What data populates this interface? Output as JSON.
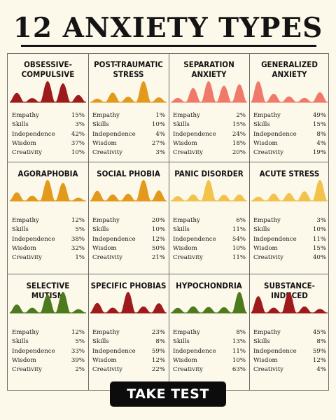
{
  "title": "12 ANXIETY TYPES",
  "cta_label": "TAKE TEST",
  "stat_labels": [
    "Empathy",
    "Skills",
    "Independence",
    "Wisdom",
    "Creativity"
  ],
  "colors": {
    "deep_red": "#9e1b1b",
    "light_red": "#f07a6a",
    "orange": "#e39a1c",
    "gold": "#f1c34c",
    "green": "#4d7a1c",
    "background": "#fcf8ea"
  },
  "chart_data": {
    "type": "table",
    "metrics": [
      "Empathy",
      "Skills",
      "Independence",
      "Wisdom",
      "Creativity"
    ],
    "items": [
      {
        "name": "OBSESSIVE-COMPULSIVE",
        "values": [
          "15%",
          "3%",
          "42%",
          "37%",
          "10%"
        ],
        "color": "#9e1b1b"
      },
      {
        "name": "POST-TRAUMATIC STRESS",
        "values": [
          "1%",
          "10%",
          "4%",
          "27%",
          "3%"
        ],
        "color": "#e39a1c"
      },
      {
        "name": "SEPARATION ANXIETY",
        "values": [
          "2%",
          "15%",
          "24%",
          "18%",
          "20%"
        ],
        "color": "#f07a6a"
      },
      {
        "name": "GENERALIZED ANXIETY",
        "values": [
          "49%",
          "15%",
          "8%",
          "4%",
          "19%"
        ],
        "color": "#f07a6a"
      },
      {
        "name": "AGORAPHOBIA",
        "values": [
          "12%",
          "5%",
          "38%",
          "32%",
          "1%"
        ],
        "color": "#e39a1c"
      },
      {
        "name": "SOCIAL PHOBIA",
        "values": [
          "20%",
          "10%",
          "12%",
          "50%",
          "21%"
        ],
        "color": "#e39a1c"
      },
      {
        "name": "PANIC DISORDER",
        "values": [
          "6%",
          "11%",
          "54%",
          "10%",
          "11%"
        ],
        "color": "#f1c34c"
      },
      {
        "name": "ACUTE STRESS",
        "values": [
          "3%",
          "10%",
          "11%",
          "15%",
          "40%"
        ],
        "color": "#f1c34c"
      },
      {
        "name": "SELECTIVE MUTISM",
        "values": [
          "12%",
          "5%",
          "33%",
          "39%",
          "2%"
        ],
        "color": "#4d7a1c"
      },
      {
        "name": "SPECIFIC PHOBIAS",
        "values": [
          "23%",
          "8%",
          "59%",
          "12%",
          "22%"
        ],
        "color": "#9e1b1b"
      },
      {
        "name": "HYPOCHONDRIA",
        "values": [
          "8%",
          "13%",
          "11%",
          "10%",
          "63%"
        ],
        "color": "#4d7a1c"
      },
      {
        "name": "SUBSTANCE-INDUCED",
        "values": [
          "45%",
          "8%",
          "59%",
          "12%",
          "4%"
        ],
        "color": "#9e1b1b"
      }
    ]
  }
}
